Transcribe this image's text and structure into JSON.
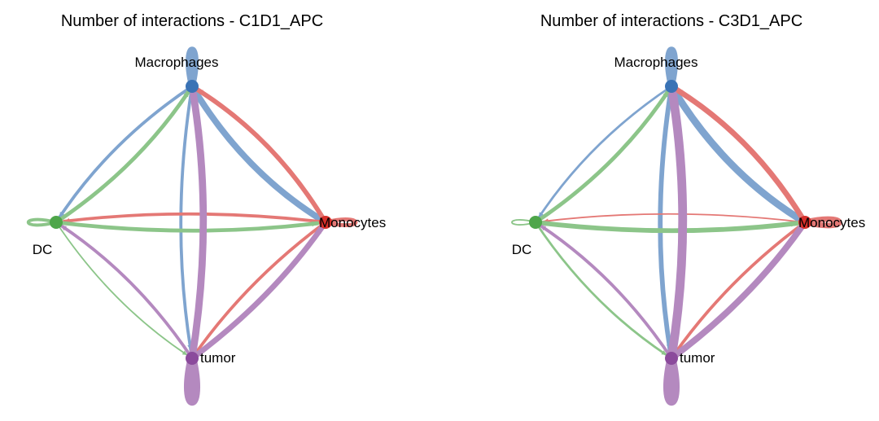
{
  "colors": {
    "Macrophages": "#3a73b5",
    "Monocytes": "#d62f2a",
    "DC": "#4ea64a",
    "tumor": "#8b4a9c"
  },
  "panels": [
    {
      "title": "Number of interactions - C1D1_APC",
      "nodes": [
        {
          "name": "Macrophages",
          "label": "Macrophages"
        },
        {
          "name": "Monocytes",
          "label": "Monocytes"
        },
        {
          "name": "DC",
          "label": "DC"
        },
        {
          "name": "tumor",
          "label": "tumor"
        }
      ],
      "edges": [
        {
          "from": "Macrophages",
          "to": "Macrophages",
          "weight": 7
        },
        {
          "from": "Macrophages",
          "to": "Monocytes",
          "weight": 7
        },
        {
          "from": "Macrophages",
          "to": "DC",
          "weight": 3
        },
        {
          "from": "Macrophages",
          "to": "tumor",
          "weight": 3
        },
        {
          "from": "Monocytes",
          "to": "Monocytes",
          "weight": 4
        },
        {
          "from": "Monocytes",
          "to": "Macrophages",
          "weight": 5
        },
        {
          "from": "Monocytes",
          "to": "DC",
          "weight": 3
        },
        {
          "from": "Monocytes",
          "to": "tumor",
          "weight": 3
        },
        {
          "from": "DC",
          "to": "DC",
          "weight": 3
        },
        {
          "from": "DC",
          "to": "Macrophages",
          "weight": 4
        },
        {
          "from": "DC",
          "to": "Monocytes",
          "weight": 4
        },
        {
          "from": "DC",
          "to": "tumor",
          "weight": 1
        },
        {
          "from": "tumor",
          "to": "tumor",
          "weight": 10
        },
        {
          "from": "tumor",
          "to": "Macrophages",
          "weight": 8
        },
        {
          "from": "tumor",
          "to": "Monocytes",
          "weight": 6
        },
        {
          "from": "tumor",
          "to": "DC",
          "weight": 3
        }
      ]
    },
    {
      "title": "Number of interactions - C3D1_APC",
      "nodes": [
        {
          "name": "Macrophages",
          "label": "Macrophages"
        },
        {
          "name": "Monocytes",
          "label": "Monocytes"
        },
        {
          "name": "DC",
          "label": "DC"
        },
        {
          "name": "tumor",
          "label": "tumor"
        }
      ],
      "edges": [
        {
          "from": "Macrophages",
          "to": "Macrophages",
          "weight": 7
        },
        {
          "from": "Macrophages",
          "to": "Monocytes",
          "weight": 8
        },
        {
          "from": "Macrophages",
          "to": "DC",
          "weight": 2
        },
        {
          "from": "Macrophages",
          "to": "tumor",
          "weight": 5
        },
        {
          "from": "Monocytes",
          "to": "Monocytes",
          "weight": 6
        },
        {
          "from": "Monocytes",
          "to": "Macrophages",
          "weight": 6
        },
        {
          "from": "Monocytes",
          "to": "DC",
          "weight": 1
        },
        {
          "from": "Monocytes",
          "to": "tumor",
          "weight": 3
        },
        {
          "from": "DC",
          "to": "DC",
          "weight": 1
        },
        {
          "from": "DC",
          "to": "Macrophages",
          "weight": 4
        },
        {
          "from": "DC",
          "to": "Monocytes",
          "weight": 5
        },
        {
          "from": "DC",
          "to": "tumor",
          "weight": 2
        },
        {
          "from": "tumor",
          "to": "tumor",
          "weight": 10
        },
        {
          "from": "tumor",
          "to": "Macrophages",
          "weight": 10
        },
        {
          "from": "tumor",
          "to": "Monocytes",
          "weight": 7
        },
        {
          "from": "tumor",
          "to": "DC",
          "weight": 3
        }
      ]
    }
  ]
}
